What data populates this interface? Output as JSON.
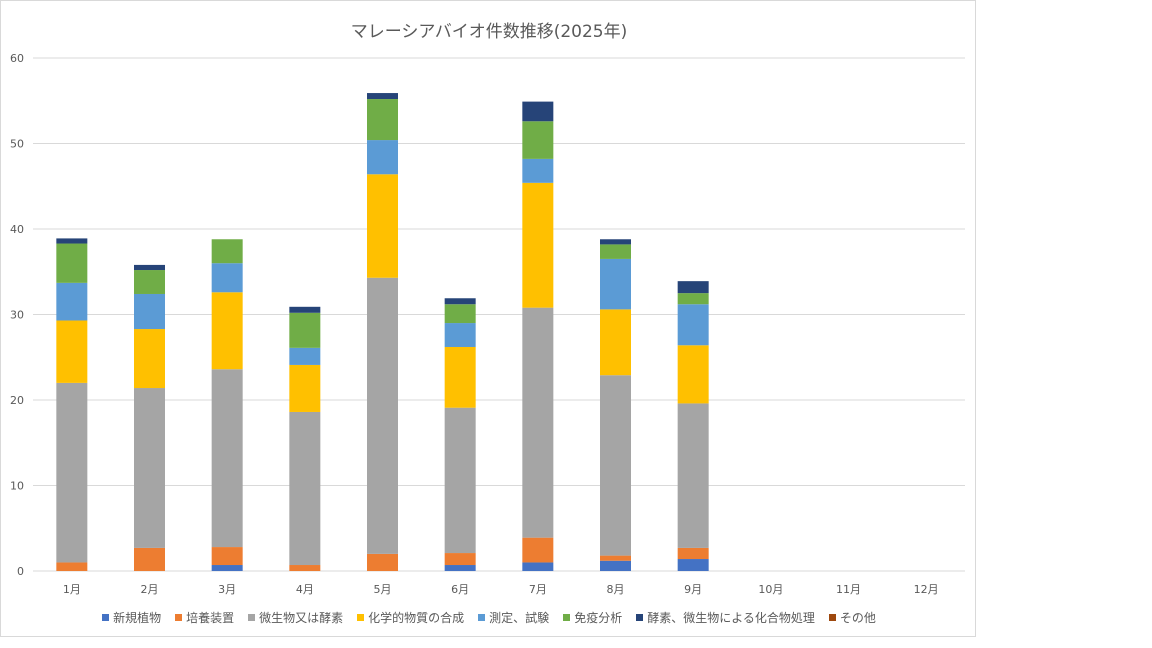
{
  "chart_data": {
    "type": "bar",
    "stacked": true,
    "title": "マレーシアバイオ件数推移(2025年)",
    "xlabel": "",
    "ylabel": "",
    "ylim": [
      0,
      60
    ],
    "yticks": [
      0,
      10,
      20,
      30,
      40,
      50,
      60
    ],
    "grid": true,
    "legend_position": "bottom",
    "categories": [
      "1月",
      "2月",
      "3月",
      "4月",
      "5月",
      "6月",
      "7月",
      "8月",
      "9月",
      "10月",
      "11月",
      "12月"
    ],
    "series": [
      {
        "name": "新規植物",
        "color": "#4472C4",
        "values": [
          0,
          0,
          0.7,
          0,
          0,
          0.7,
          1.0,
          1.2,
          1.4,
          0,
          0,
          0
        ]
      },
      {
        "name": "培養装置",
        "color": "#ED7D31",
        "values": [
          1.0,
          2.7,
          2.1,
          0.7,
          2.0,
          1.4,
          2.9,
          0.6,
          1.3,
          0,
          0,
          0
        ]
      },
      {
        "name": "微生物又は酵素",
        "color": "#A5A5A5",
        "values": [
          21.0,
          18.7,
          20.8,
          17.9,
          32.3,
          17.0,
          26.9,
          21.1,
          16.9,
          0,
          0,
          0
        ]
      },
      {
        "name": "化学的物質の合成",
        "color": "#FFC000",
        "values": [
          7.3,
          6.9,
          9.0,
          5.5,
          12.1,
          7.1,
          14.6,
          7.7,
          6.8,
          0,
          0,
          0
        ]
      },
      {
        "name": "測定、試験",
        "color": "#5B9BD5",
        "values": [
          4.4,
          4.1,
          3.4,
          2.0,
          4.0,
          2.8,
          2.8,
          5.9,
          4.8,
          0,
          0,
          0
        ]
      },
      {
        "name": "免疫分析",
        "color": "#70AD47",
        "values": [
          4.6,
          2.8,
          2.8,
          4.1,
          4.8,
          2.2,
          4.4,
          1.7,
          1.3,
          0,
          0,
          0
        ]
      },
      {
        "name": "酵素、微生物による化合物処理",
        "color": "#264478",
        "values": [
          0.6,
          0.6,
          0,
          0.7,
          0.7,
          0.7,
          2.3,
          0.6,
          1.4,
          0,
          0,
          0
        ]
      },
      {
        "name": "その他",
        "color": "#9E480E",
        "values": [
          0,
          0,
          0,
          0,
          0,
          0,
          0,
          0,
          0,
          0,
          0,
          0
        ]
      }
    ]
  }
}
